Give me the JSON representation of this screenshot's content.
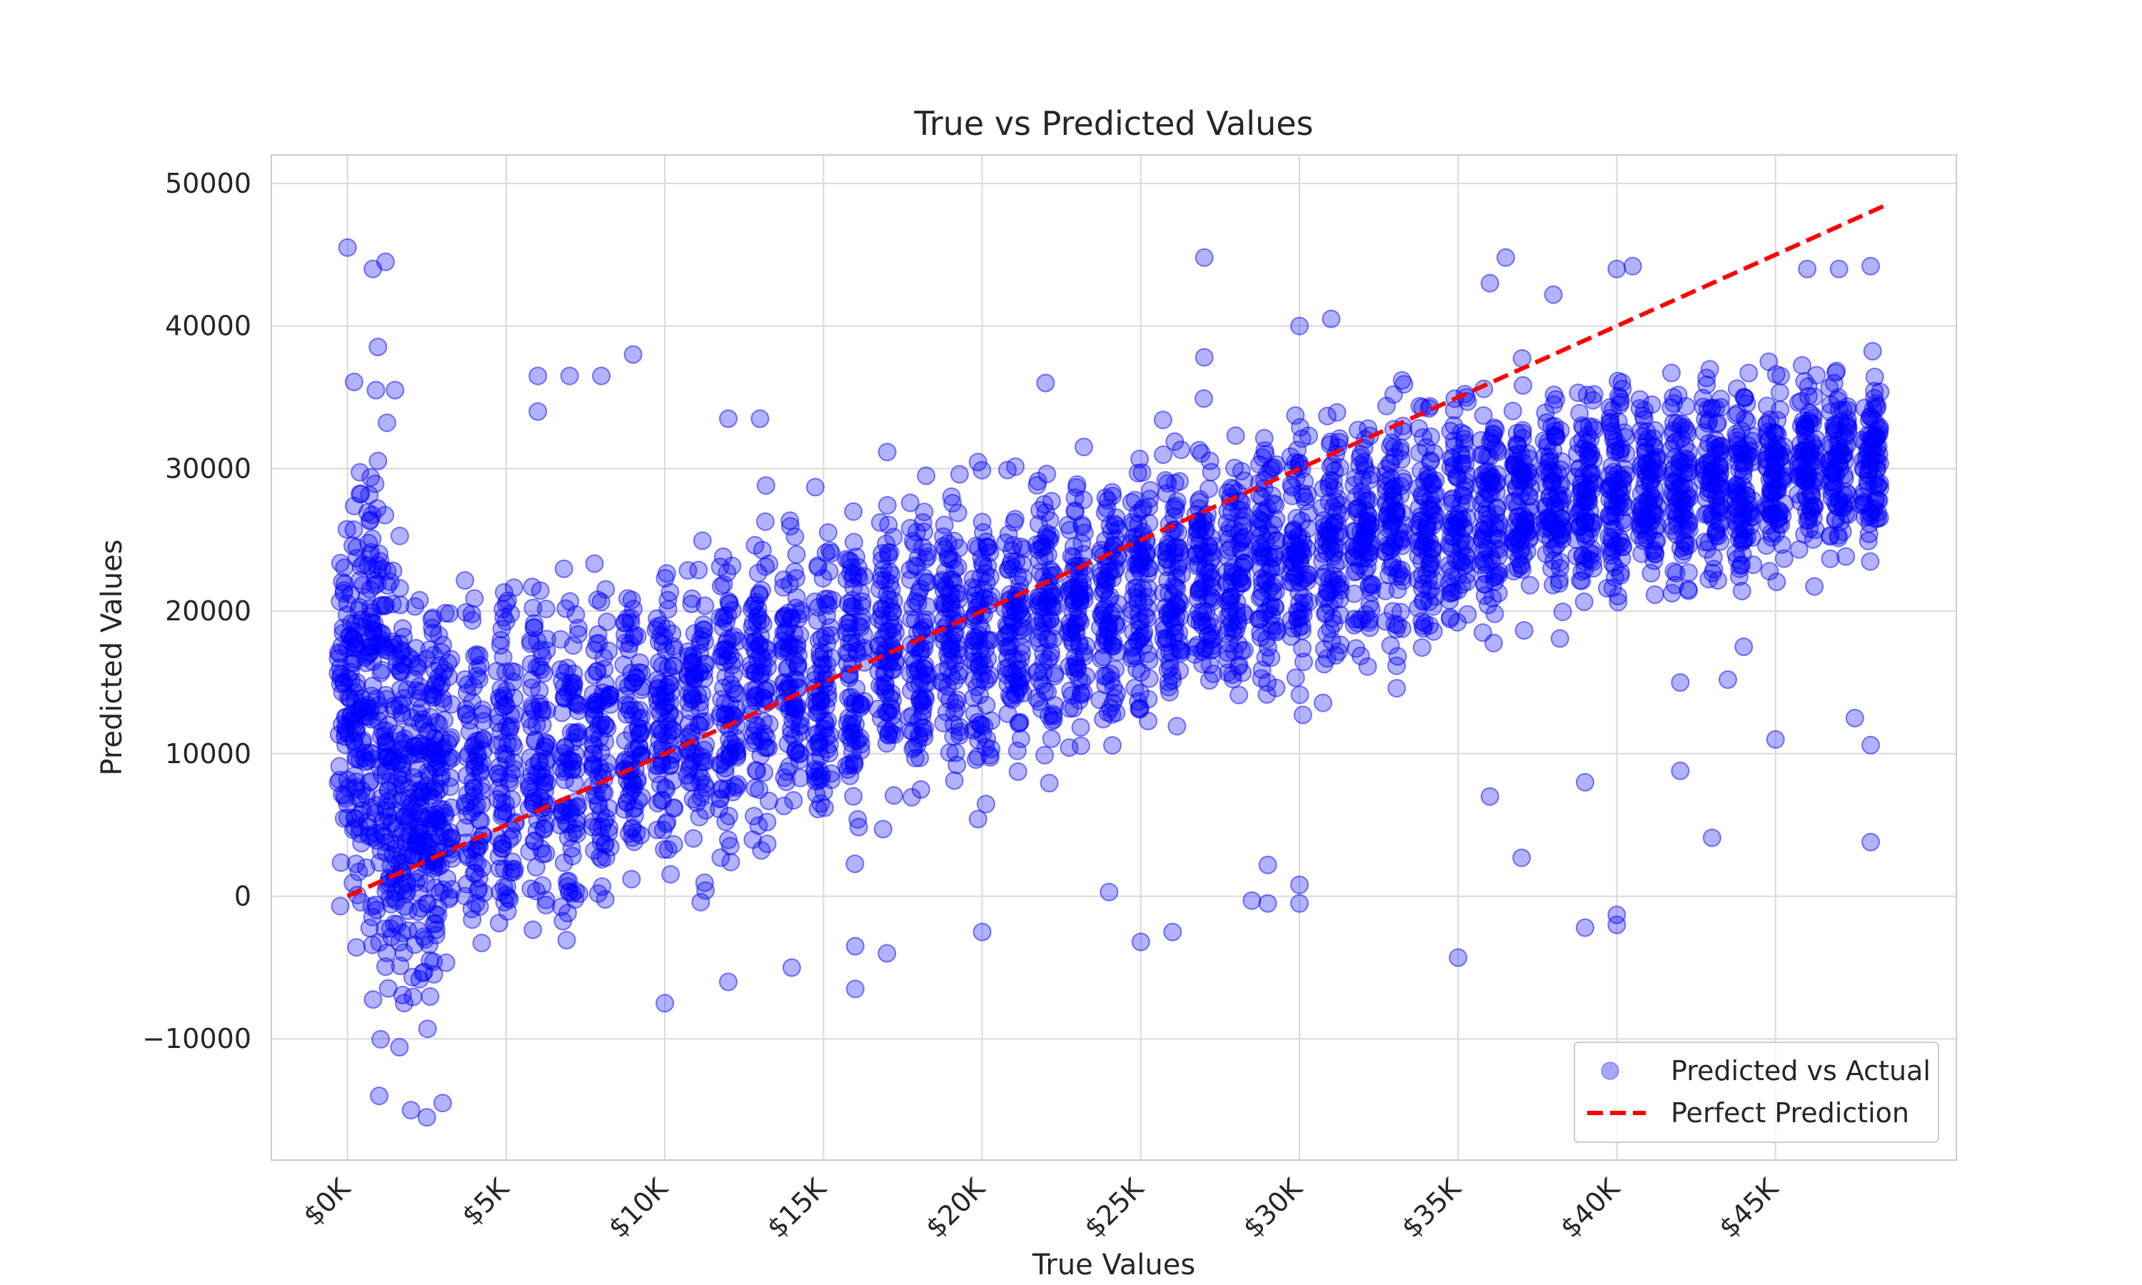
{
  "chart_data": {
    "type": "scatter",
    "title": "True vs Predicted Values",
    "xlabel": "True Values",
    "ylabel": "Predicted Values",
    "xlim": [
      -2400,
      50700
    ],
    "ylim": [
      -18500,
      52000
    ],
    "x_ticks": [
      {
        "value": 0,
        "label": "$0K"
      },
      {
        "value": 5000,
        "label": "$5K"
      },
      {
        "value": 10000,
        "label": "$10K"
      },
      {
        "value": 15000,
        "label": "$15K"
      },
      {
        "value": 20000,
        "label": "$20K"
      },
      {
        "value": 25000,
        "label": "$25K"
      },
      {
        "value": 30000,
        "label": "$30K"
      },
      {
        "value": 35000,
        "label": "$35K"
      },
      {
        "value": 40000,
        "label": "$40K"
      },
      {
        "value": 45000,
        "label": "$45K"
      }
    ],
    "y_ticks": [
      {
        "value": -10000,
        "label": "−10000"
      },
      {
        "value": 0,
        "label": "0"
      },
      {
        "value": 10000,
        "label": "10000"
      },
      {
        "value": 20000,
        "label": "20000"
      },
      {
        "value": 30000,
        "label": "30000"
      },
      {
        "value": 40000,
        "label": "40000"
      },
      {
        "value": 50000,
        "label": "50000"
      }
    ],
    "grid": true,
    "legend_position": "bottom-right",
    "series": [
      {
        "name": "Predicted vs Actual",
        "kind": "scatter",
        "color": "#0000ff",
        "alpha": 0.3,
        "clusters": [
          {
            "x": 0,
            "y_low": -5000,
            "y_high": 32000
          },
          {
            "x": 500,
            "y_low": -10000,
            "y_high": 38000
          },
          {
            "x": 1000,
            "y_low": -13000,
            "y_high": 42000
          },
          {
            "x": 1500,
            "y_low": -14000,
            "y_high": 30000
          },
          {
            "x": 2000,
            "y_low": -13500,
            "y_high": 27000
          },
          {
            "x": 2500,
            "y_low": -13000,
            "y_high": 26000
          },
          {
            "x": 3000,
            "y_low": -12000,
            "y_high": 25000
          },
          {
            "x": 4000,
            "y_low": -10000,
            "y_high": 25000
          },
          {
            "x": 5000,
            "y_low": -8000,
            "y_high": 27000
          },
          {
            "x": 6000,
            "y_low": -7000,
            "y_high": 27000
          },
          {
            "x": 7000,
            "y_low": -6000,
            "y_high": 26000
          },
          {
            "x": 8000,
            "y_low": -5000,
            "y_high": 26000
          },
          {
            "x": 9000,
            "y_low": -4000,
            "y_high": 27000
          },
          {
            "x": 10000,
            "y_low": -3000,
            "y_high": 28000
          },
          {
            "x": 11000,
            "y_low": -2000,
            "y_high": 28000
          },
          {
            "x": 12000,
            "y_low": -1000,
            "y_high": 29000
          },
          {
            "x": 13000,
            "y_low": 0,
            "y_high": 30000
          },
          {
            "x": 14000,
            "y_low": 0,
            "y_high": 30000
          },
          {
            "x": 15000,
            "y_low": 1000,
            "y_high": 31000
          },
          {
            "x": 16000,
            "y_low": 1000,
            "y_high": 31000
          },
          {
            "x": 17000,
            "y_low": 2000,
            "y_high": 32000
          },
          {
            "x": 18000,
            "y_low": 3000,
            "y_high": 32000
          },
          {
            "x": 19000,
            "y_low": 3000,
            "y_high": 33000
          },
          {
            "x": 20000,
            "y_low": 4000,
            "y_high": 33000
          },
          {
            "x": 21000,
            "y_low": 5000,
            "y_high": 33000
          },
          {
            "x": 22000,
            "y_low": 6000,
            "y_high": 34000
          },
          {
            "x": 23000,
            "y_low": 6000,
            "y_high": 34000
          },
          {
            "x": 24000,
            "y_low": 7000,
            "y_high": 35000
          },
          {
            "x": 25000,
            "y_low": 8000,
            "y_high": 35000
          },
          {
            "x": 26000,
            "y_low": 9000,
            "y_high": 35000
          },
          {
            "x": 27000,
            "y_low": 9000,
            "y_high": 36000
          },
          {
            "x": 28000,
            "y_low": 10000,
            "y_high": 36000
          },
          {
            "x": 29000,
            "y_low": 10000,
            "y_high": 36000
          },
          {
            "x": 30000,
            "y_low": 11000,
            "y_high": 37000
          },
          {
            "x": 31000,
            "y_low": 12000,
            "y_high": 37000
          },
          {
            "x": 32000,
            "y_low": 13000,
            "y_high": 37000
          },
          {
            "x": 33000,
            "y_low": 14000,
            "y_high": 38000
          },
          {
            "x": 34000,
            "y_low": 14000,
            "y_high": 38000
          },
          {
            "x": 35000,
            "y_low": 15000,
            "y_high": 38000
          },
          {
            "x": 36000,
            "y_low": 16000,
            "y_high": 39000
          },
          {
            "x": 37000,
            "y_low": 17000,
            "y_high": 39000
          },
          {
            "x": 38000,
            "y_low": 17000,
            "y_high": 39000
          },
          {
            "x": 39000,
            "y_low": 18000,
            "y_high": 39000
          },
          {
            "x": 40000,
            "y_low": 18000,
            "y_high": 39000
          },
          {
            "x": 41000,
            "y_low": 19000,
            "y_high": 39000
          },
          {
            "x": 42000,
            "y_low": 19000,
            "y_high": 39000
          },
          {
            "x": 43000,
            "y_low": 20000,
            "y_high": 39000
          },
          {
            "x": 44000,
            "y_low": 20000,
            "y_high": 39000
          },
          {
            "x": 45000,
            "y_low": 20000,
            "y_high": 39000
          },
          {
            "x": 46000,
            "y_low": 21000,
            "y_high": 39000
          },
          {
            "x": 47000,
            "y_low": 21000,
            "y_high": 39000
          },
          {
            "x": 48000,
            "y_low": 22000,
            "y_high": 39000
          }
        ],
        "outliers": [
          {
            "x": 0,
            "y": 45500
          },
          {
            "x": 800,
            "y": 44000
          },
          {
            "x": 1200,
            "y": 44500
          },
          {
            "x": 1500,
            "y": 35500
          },
          {
            "x": 2000,
            "y": -15000
          },
          {
            "x": 2500,
            "y": -15500
          },
          {
            "x": 1000,
            "y": -14000
          },
          {
            "x": 3000,
            "y": -14500
          },
          {
            "x": 6000,
            "y": 36500
          },
          {
            "x": 6000,
            "y": 34000
          },
          {
            "x": 7000,
            "y": 36500
          },
          {
            "x": 8000,
            "y": 36500
          },
          {
            "x": 9000,
            "y": 38000
          },
          {
            "x": 12000,
            "y": 33500
          },
          {
            "x": 13000,
            "y": 33500
          },
          {
            "x": 10000,
            "y": -7500
          },
          {
            "x": 12000,
            "y": -6000
          },
          {
            "x": 14000,
            "y": -5000
          },
          {
            "x": 16000,
            "y": -6500
          },
          {
            "x": 16000,
            "y": -3500
          },
          {
            "x": 17000,
            "y": -4000
          },
          {
            "x": 20000,
            "y": -2500
          },
          {
            "x": 22000,
            "y": 36000
          },
          {
            "x": 24000,
            "y": 300
          },
          {
            "x": 25000,
            "y": -3200
          },
          {
            "x": 26000,
            "y": -2500
          },
          {
            "x": 27000,
            "y": 44800
          },
          {
            "x": 27000,
            "y": 37800
          },
          {
            "x": 28500,
            "y": -300
          },
          {
            "x": 29000,
            "y": -500
          },
          {
            "x": 29000,
            "y": 2200
          },
          {
            "x": 30000,
            "y": 800
          },
          {
            "x": 30000,
            "y": -500
          },
          {
            "x": 30000,
            "y": 40000
          },
          {
            "x": 31000,
            "y": 40500
          },
          {
            "x": 35000,
            "y": -4300
          },
          {
            "x": 36000,
            "y": 7000
          },
          {
            "x": 36000,
            "y": 43000
          },
          {
            "x": 36500,
            "y": 44800
          },
          {
            "x": 37000,
            "y": 2700
          },
          {
            "x": 38000,
            "y": 42200
          },
          {
            "x": 39000,
            "y": -2200
          },
          {
            "x": 39000,
            "y": 8000
          },
          {
            "x": 40000,
            "y": -1300
          },
          {
            "x": 40000,
            "y": -2000
          },
          {
            "x": 40000,
            "y": 44000
          },
          {
            "x": 40500,
            "y": 44200
          },
          {
            "x": 42000,
            "y": 8800
          },
          {
            "x": 43000,
            "y": 4100
          },
          {
            "x": 42000,
            "y": 15000
          },
          {
            "x": 45000,
            "y": 11000
          },
          {
            "x": 47500,
            "y": 12500
          },
          {
            "x": 48000,
            "y": 3800
          },
          {
            "x": 48000,
            "y": 10600
          },
          {
            "x": 48000,
            "y": 44200
          },
          {
            "x": 46000,
            "y": 44000
          },
          {
            "x": 47000,
            "y": 44000
          },
          {
            "x": 44000,
            "y": 17500
          },
          {
            "x": 43500,
            "y": 15200
          }
        ]
      },
      {
        "name": "Perfect Prediction",
        "kind": "line",
        "style": "dashed",
        "color": "#ff0000",
        "x": [
          0,
          48500
        ],
        "y": [
          0,
          48500
        ]
      }
    ]
  }
}
